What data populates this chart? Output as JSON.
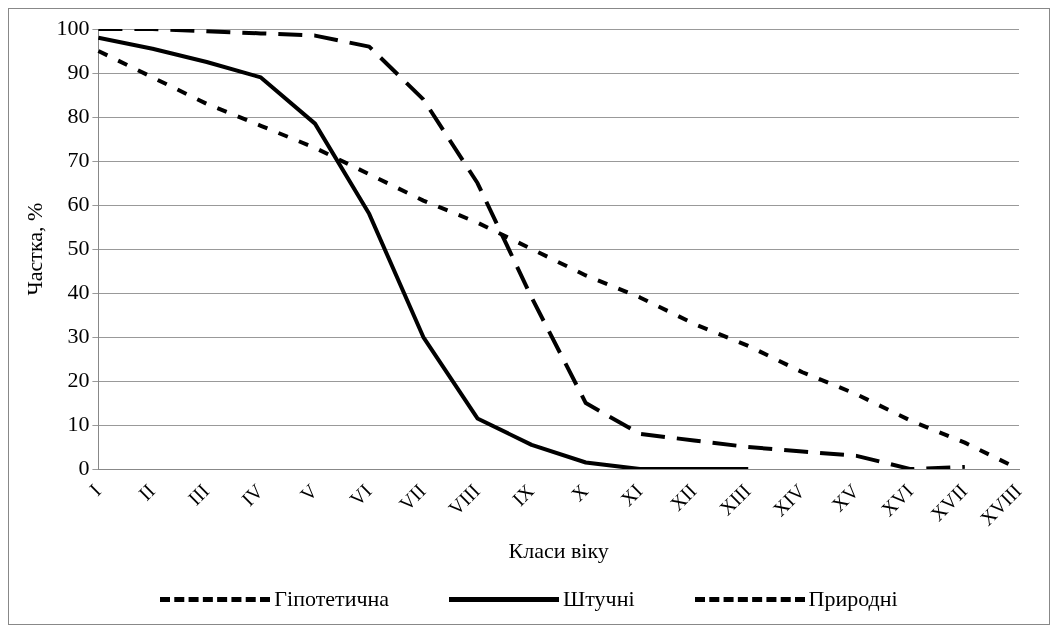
{
  "chart_data": {
    "type": "line",
    "xlabel": "Класи віку",
    "ylabel": "Частка, %",
    "categories": [
      "I",
      "II",
      "III",
      "IV",
      "V",
      "VI",
      "VII",
      "VIII",
      "IX",
      "X",
      "XI",
      "XII",
      "XIII",
      "XIV",
      "XV",
      "XVI",
      "XVII",
      "XVIII"
    ],
    "series": [
      {
        "name": "Гіпотетична",
        "color": "#000000",
        "line_style": "dotted",
        "values": [
          95,
          89,
          83,
          78,
          73,
          67,
          61,
          56,
          50,
          44,
          39,
          33,
          28,
          22,
          17,
          11,
          6,
          0
        ]
      },
      {
        "name": "Штучні",
        "color": "#000000",
        "line_style": "solid",
        "values": [
          98,
          95.5,
          92.5,
          89,
          78.5,
          58,
          30,
          11.5,
          5.5,
          1.5,
          0,
          0,
          0,
          null,
          null,
          null,
          null,
          null
        ]
      },
      {
        "name": "Природні",
        "color": "#000000",
        "line_style": "dashed",
        "values": [
          100,
          100,
          99.5,
          99,
          98.5,
          96,
          84,
          65,
          39,
          15,
          8,
          6.5,
          5,
          4,
          3,
          0,
          0.5,
          null
        ]
      }
    ],
    "ylim": [
      0,
      100
    ],
    "yticks": [
      0,
      10,
      20,
      30,
      40,
      50,
      60,
      70,
      80,
      90,
      100
    ],
    "grid": "y",
    "legend": "bottom",
    "marker": "none"
  }
}
